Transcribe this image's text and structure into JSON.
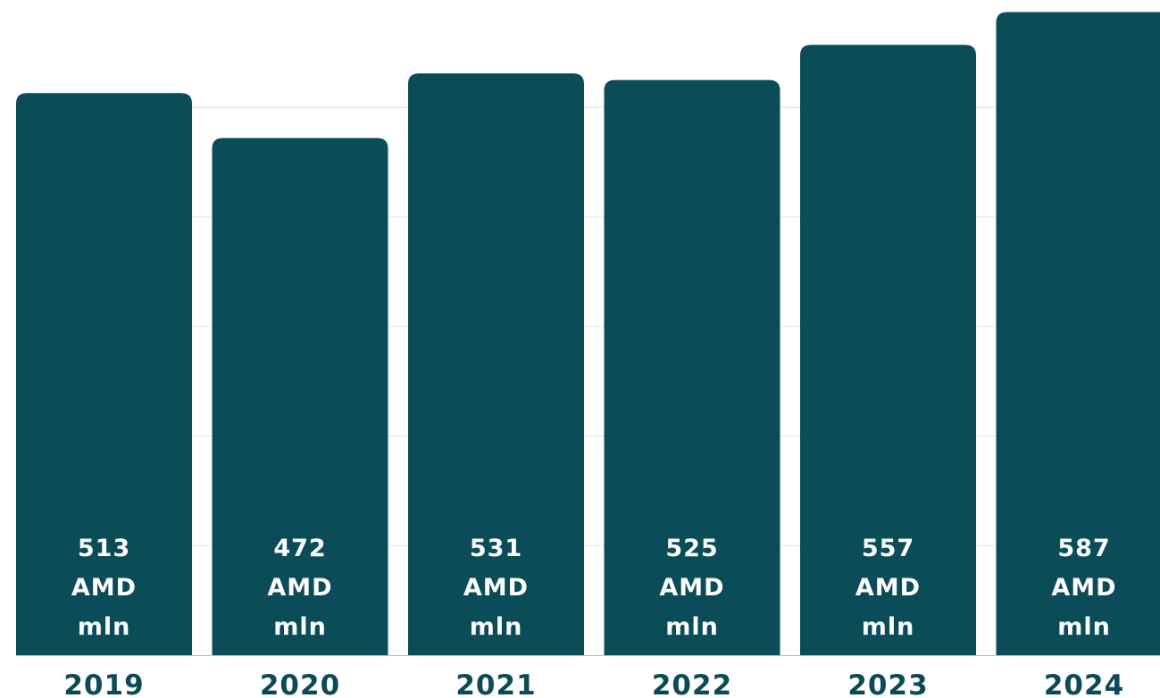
{
  "chart_data": {
    "type": "bar",
    "categories": [
      "2019",
      "2020",
      "2021",
      "2022",
      "2023",
      "2024"
    ],
    "values": [
      513,
      472,
      531,
      525,
      557,
      587
    ],
    "value_labels": [
      [
        "513",
        "AMD",
        "mln"
      ],
      [
        "472",
        "AMD",
        "mln"
      ],
      [
        "531",
        "AMD",
        "mln"
      ],
      [
        "525",
        "AMD",
        "mln"
      ],
      [
        "557",
        "AMD",
        "mln"
      ],
      [
        "587",
        "AMD",
        "mln"
      ]
    ],
    "unit": "AMD mln",
    "title": "",
    "xlabel": "",
    "ylabel": "",
    "ylim": [
      0,
      600
    ],
    "grid": true,
    "legend": "none",
    "colors": {
      "bar": "#0a4c58",
      "tick_text": "#0b4a56",
      "label_text": "#ffffff",
      "grid": "#e2e2e2",
      "axis": "#bdbdbd"
    }
  }
}
